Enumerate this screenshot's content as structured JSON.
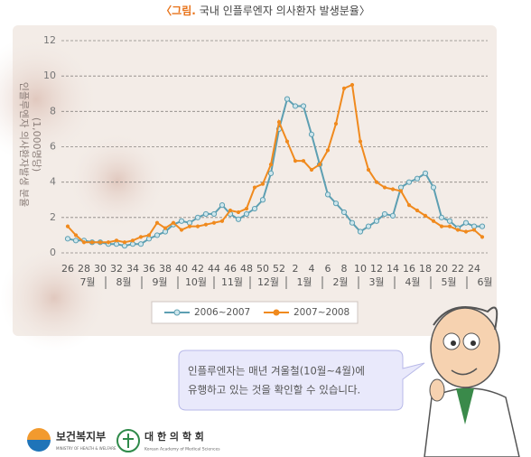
{
  "chart_data": {
    "type": "line",
    "title_label": "〈그림.",
    "title": "국내 인플루엔자 의사환자 발생분율〉",
    "y_label": [
      "인플루엔자 의사환자발생 분율",
      "(1,000명당)"
    ],
    "categories": [
      "26",
      null,
      "28",
      null,
      "30",
      null,
      "32",
      null,
      "34",
      null,
      "36",
      null,
      "38",
      null,
      "40",
      null,
      "42",
      null,
      "44",
      null,
      "46",
      null,
      "48",
      null,
      "50",
      null,
      "52",
      null,
      "2",
      null,
      "4",
      null,
      "6",
      null,
      "8",
      null,
      "10",
      null,
      "12",
      null,
      "14",
      null,
      "16",
      null,
      "18",
      null,
      "20",
      null,
      "22",
      null,
      "24",
      null
    ],
    "month_labels": [
      "7월",
      "8월",
      "9월",
      "10월",
      "11월",
      "12월",
      "1월",
      "2월",
      "3월",
      "4월",
      "5월",
      "6월"
    ],
    "series": [
      {
        "name": "2006~2007",
        "color": "#5d9fb2",
        "values": [
          0.8,
          0.7,
          0.7,
          0.6,
          0.6,
          0.5,
          0.5,
          0.4,
          0.5,
          0.5,
          0.8,
          1.0,
          1.2,
          1.6,
          1.8,
          1.7,
          2.0,
          2.2,
          2.2,
          2.7,
          2.2,
          1.9,
          2.2,
          2.5,
          3.0,
          4.5,
          7.0,
          8.7,
          8.3,
          8.3,
          6.7,
          5.0,
          3.3,
          2.8,
          2.3,
          1.7,
          1.2,
          1.5,
          1.8,
          2.2,
          2.1,
          3.7,
          4.0,
          4.2,
          4.5,
          3.7,
          2.0,
          1.8,
          1.4,
          1.7,
          1.5,
          1.5
        ]
      },
      {
        "name": "2007~2008",
        "color": "#f08a1e",
        "values": [
          1.5,
          1.0,
          0.6,
          0.6,
          0.6,
          0.6,
          0.7,
          0.6,
          0.7,
          0.9,
          1.0,
          1.7,
          1.4,
          1.7,
          1.3,
          1.5,
          1.5,
          1.6,
          1.7,
          1.8,
          2.4,
          2.3,
          2.5,
          3.7,
          3.9,
          5.0,
          7.4,
          6.3,
          5.2,
          5.2,
          4.7,
          5.0,
          5.8,
          7.3,
          9.3,
          9.5,
          6.3,
          4.7,
          4.0,
          3.7,
          3.6,
          3.5,
          2.7,
          2.4,
          2.1,
          1.8,
          1.5,
          1.5,
          1.3,
          1.2,
          1.3,
          0.9
        ]
      }
    ],
    "ylim": [
      0,
      12
    ],
    "yticks": [
      0,
      2,
      4,
      6,
      8,
      10,
      12
    ],
    "grid": true
  },
  "callout": [
    "인플루엔자는 매년 겨울철(10월~4월)에",
    "유행하고 있는 것을 확인할 수 있습니다."
  ],
  "logos": {
    "ministry": "보건복지부",
    "ministry_en": "MINISTRY OF HEALTH & WELFARE",
    "academy": "대 한 의 학 회",
    "academy_en": "Korean Academy of Medical Sciences"
  }
}
